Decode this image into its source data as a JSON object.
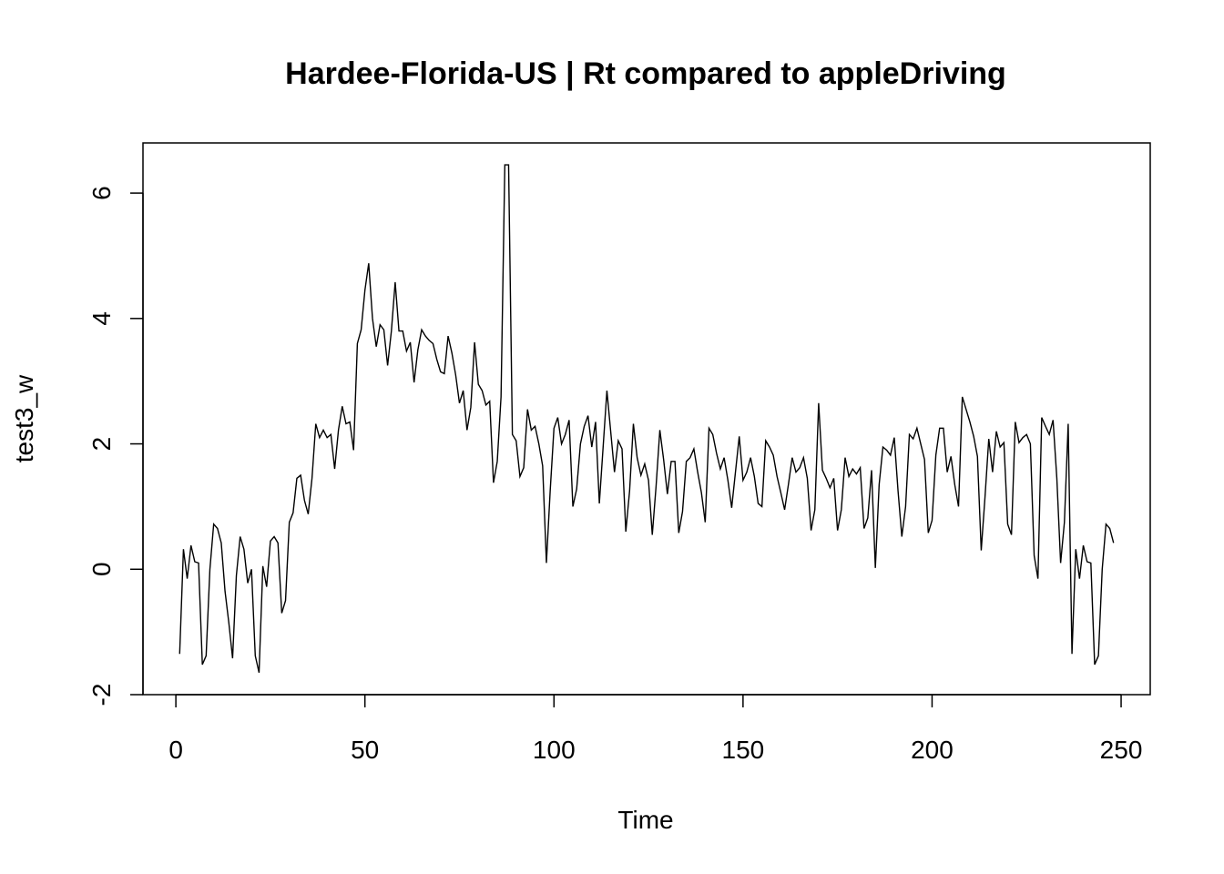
{
  "chart_data": {
    "type": "line",
    "title": "Hardee-Florida-US | Rt compared to appleDriving",
    "xlabel": "Time",
    "ylabel": "test3_w",
    "xlim": [
      -8.7,
      257.7
    ],
    "ylim": [
      -2.0,
      6.8
    ],
    "xticks": [
      0,
      50,
      100,
      150,
      200,
      250
    ],
    "yticks": [
      -2,
      0,
      2,
      4,
      6
    ],
    "grid": false,
    "legend": "none",
    "line_color": "#000000",
    "series": [
      {
        "x": [
          1,
          2,
          3,
          4,
          5,
          6,
          7,
          8,
          9,
          10,
          11,
          12,
          13,
          14,
          15,
          16,
          17,
          18,
          19,
          20,
          21,
          22,
          23,
          24,
          25,
          26,
          27,
          28,
          29,
          30,
          31,
          32,
          33,
          34,
          35,
          36,
          37,
          38,
          39,
          40,
          41,
          42,
          43,
          44,
          45,
          46,
          47,
          48,
          49,
          50,
          51,
          52,
          53,
          54,
          55,
          56,
          57,
          58,
          59,
          60,
          61,
          62,
          63,
          64,
          65,
          66,
          67,
          68,
          69,
          70,
          71,
          72,
          73,
          74,
          75,
          76,
          77,
          78,
          79,
          80,
          81,
          82,
          83,
          84,
          85,
          86,
          87,
          88,
          89,
          90,
          91,
          92,
          93,
          94,
          95,
          96,
          97,
          98,
          99,
          100,
          101,
          102,
          103,
          104,
          105,
          106,
          107,
          108,
          109,
          110,
          111,
          112,
          113,
          114,
          115,
          116,
          117,
          118,
          119,
          120,
          121,
          122,
          123,
          124,
          125,
          126,
          127,
          128,
          129,
          130,
          131,
          132,
          133,
          134,
          135,
          136,
          137,
          138,
          139,
          140,
          141,
          142,
          143,
          144,
          145,
          146,
          147,
          148,
          149,
          150,
          151,
          152,
          153,
          154,
          155,
          156,
          157,
          158,
          159,
          160,
          161,
          162,
          163,
          164,
          165,
          166,
          167,
          168,
          169,
          170,
          171,
          172,
          173,
          174,
          175,
          176,
          177,
          178,
          179,
          180,
          181,
          182,
          183,
          184,
          185,
          186,
          187,
          188,
          189,
          190,
          191,
          192,
          193,
          194,
          195,
          196,
          197,
          198,
          199,
          200,
          201,
          202,
          203,
          204,
          205,
          206,
          207,
          208,
          209,
          210,
          211,
          212,
          213,
          214,
          215,
          216,
          217,
          218,
          219,
          220,
          221,
          222,
          223,
          224,
          225,
          226,
          227,
          228,
          229,
          230,
          231,
          232,
          233,
          234,
          235,
          236,
          237,
          238,
          239,
          240,
          241,
          242,
          243,
          244,
          245,
          246,
          247,
          248
        ],
        "values": [
          -1.35,
          0.32,
          -0.15,
          0.38,
          0.12,
          0.1,
          -1.52,
          -1.38,
          0.0,
          0.72,
          0.65,
          0.42,
          -0.35,
          -0.85,
          -1.42,
          -0.1,
          0.52,
          0.32,
          -0.22,
          0.0,
          -1.38,
          -1.65,
          0.05,
          -0.28,
          0.45,
          0.52,
          0.42,
          -0.7,
          -0.5,
          0.75,
          0.9,
          1.45,
          1.5,
          1.1,
          0.88,
          1.45,
          2.32,
          2.1,
          2.22,
          2.1,
          2.15,
          1.6,
          2.22,
          2.6,
          2.32,
          2.35,
          1.9,
          3.6,
          3.82,
          4.45,
          4.88,
          4.0,
          3.55,
          3.9,
          3.82,
          3.25,
          3.8,
          4.58,
          3.8,
          3.8,
          3.48,
          3.62,
          2.98,
          3.5,
          3.82,
          3.72,
          3.65,
          3.6,
          3.35,
          3.15,
          3.12,
          3.72,
          3.45,
          3.1,
          2.65,
          2.85,
          2.22,
          2.58,
          3.62,
          2.95,
          2.85,
          2.62,
          2.68,
          1.38,
          1.72,
          2.75,
          6.45,
          6.45,
          2.15,
          2.05,
          1.48,
          1.62,
          2.55,
          2.22,
          2.28,
          2.0,
          1.65,
          0.1,
          1.25,
          2.25,
          2.42,
          2.0,
          2.15,
          2.38,
          1.0,
          1.28,
          2.0,
          2.28,
          2.45,
          1.95,
          2.35,
          1.05,
          1.95,
          2.85,
          2.2,
          1.55,
          2.05,
          1.92,
          0.6,
          1.25,
          2.32,
          1.78,
          1.5,
          1.68,
          1.42,
          0.55,
          1.32,
          2.22,
          1.75,
          1.2,
          1.72,
          1.72,
          0.58,
          0.92,
          1.72,
          1.78,
          1.92,
          1.55,
          1.22,
          0.75,
          2.25,
          2.15,
          1.85,
          1.6,
          1.78,
          1.42,
          0.98,
          1.55,
          2.12,
          1.42,
          1.55,
          1.78,
          1.48,
          1.05,
          1.0,
          2.05,
          1.95,
          1.82,
          1.48,
          1.22,
          0.95,
          1.35,
          1.78,
          1.55,
          1.62,
          1.78,
          1.45,
          0.62,
          0.95,
          2.65,
          1.58,
          1.45,
          1.3,
          1.45,
          0.62,
          0.95,
          1.78,
          1.48,
          1.6,
          1.52,
          1.62,
          0.65,
          0.82,
          1.58,
          0.02,
          1.35,
          1.95,
          1.9,
          1.82,
          2.1,
          1.25,
          0.52,
          1.0,
          2.15,
          2.08,
          2.25,
          2.0,
          1.75,
          0.58,
          0.78,
          1.82,
          2.25,
          2.25,
          1.55,
          1.8,
          1.35,
          1.0,
          2.75,
          2.55,
          2.35,
          2.12,
          1.8,
          0.3,
          1.15,
          2.08,
          1.55,
          2.2,
          1.95,
          2.02,
          0.72,
          0.55,
          2.35,
          2.02,
          2.1,
          2.15,
          2.0,
          0.22,
          -0.15,
          2.42,
          2.28,
          2.15,
          2.38,
          1.45,
          0.1,
          0.75,
          2.32,
          -1.35,
          0.32,
          -0.15,
          0.38,
          0.12,
          0.1,
          -1.52,
          -1.38,
          0.0,
          0.72,
          0.65,
          0.42
        ]
      }
    ]
  }
}
